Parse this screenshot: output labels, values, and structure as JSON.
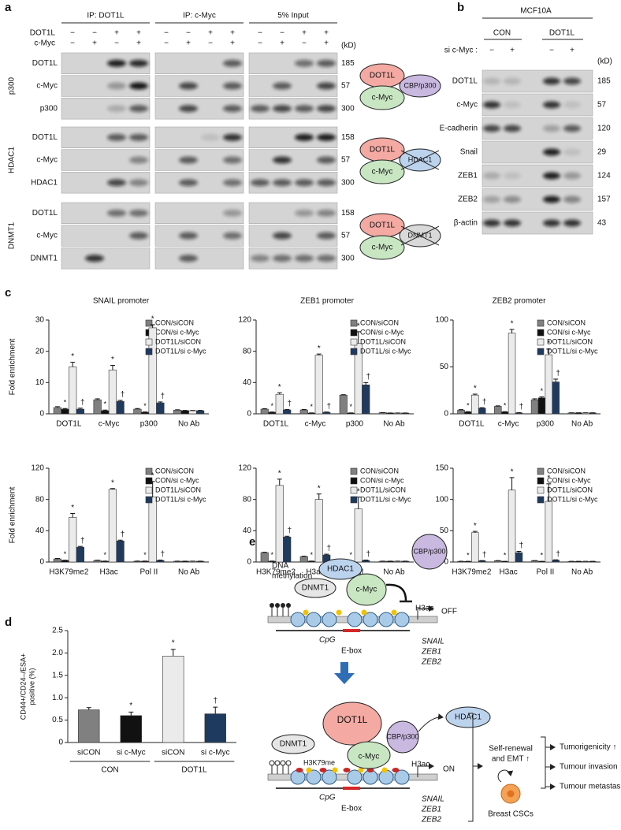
{
  "panel_a": {
    "label": "a",
    "headers": [
      "IP: DOT1L",
      "IP: c-Myc",
      "5% Input"
    ],
    "treatments": [
      {
        "name": "DOT1L",
        "signs": [
          "−",
          "−",
          "+",
          "+"
        ]
      },
      {
        "name": "c-Myc",
        "signs": [
          "−",
          "+",
          "−",
          "+"
        ]
      }
    ],
    "unit": "(kD)",
    "groups": [
      {
        "name": "p300",
        "rows": [
          {
            "name": "DOT1L",
            "kd": 185
          },
          {
            "name": "c-Myc",
            "kd": 57
          },
          {
            "name": "p300",
            "kd": 300
          }
        ]
      },
      {
        "name": "HDAC1",
        "rows": [
          {
            "name": "DOT1L",
            "kd": 158
          },
          {
            "name": "c-Myc",
            "kd": 57
          },
          {
            "name": "HDAC1",
            "kd": 300
          }
        ]
      },
      {
        "name": "DNMT1",
        "rows": [
          {
            "name": "DOT1L",
            "kd": 158
          },
          {
            "name": "c-Myc",
            "kd": 57
          },
          {
            "name": "DNMT1",
            "kd": 300
          }
        ]
      }
    ],
    "diagrams": [
      {
        "top": "DOT1L",
        "bottom": "c-Myc",
        "partner": "CBP/p300"
      },
      {
        "top": "DOT1L",
        "bottom": "c-Myc",
        "partner": "HDAC1"
      },
      {
        "top": "DOT1L",
        "bottom": "c-Myc",
        "partner": "DNMT1"
      }
    ]
  },
  "panel_b": {
    "label": "b",
    "cell_line": "MCF10A",
    "groups": [
      "CON",
      "DOT1L"
    ],
    "treatment": "si c-Myc :",
    "signs": [
      "−",
      "+",
      "−",
      "+"
    ],
    "unit": "(kD)",
    "rows": [
      {
        "name": "DOT1L",
        "kd": 185
      },
      {
        "name": "c-Myc",
        "kd": 57
      },
      {
        "name": "E-cadherin",
        "kd": 120
      },
      {
        "name": "Snail",
        "kd": 29
      },
      {
        "name": "ZEB1",
        "kd": 124
      },
      {
        "name": "ZEB2",
        "kd": 157
      },
      {
        "name": "β-actin",
        "kd": 43
      }
    ]
  },
  "panel_c_label": "c",
  "panel_d_label": "d",
  "chart_data": [
    {
      "type": "bar",
      "title": "SNAIL promoter",
      "y_label": "Fold enrichment",
      "categories": [
        "DOT1L",
        "c-Myc",
        "p300",
        "No Ab"
      ],
      "ylim": [
        0,
        30
      ],
      "yticks": [
        0,
        10,
        20,
        30
      ],
      "series": [
        {
          "name": "CON/siCON",
          "color": "#808080",
          "values": [
            2,
            4.5,
            1.5,
            1.2
          ],
          "errors": [
            0.3,
            0.3,
            0.2,
            0.1
          ],
          "annotations": [
            null,
            null,
            null,
            null
          ]
        },
        {
          "name": "CON/si c-Myc",
          "color": "#111111",
          "values": [
            1.5,
            1,
            0.5,
            1
          ],
          "errors": [
            0.2,
            0.2,
            0.1,
            0.1
          ],
          "annotations": [
            "*",
            "*",
            "*",
            null
          ]
        },
        {
          "name": "DOT1L/siCON",
          "color": "#ebebeb",
          "values": [
            15,
            14,
            27.5,
            1
          ],
          "errors": [
            1.5,
            1.5,
            1,
            0.1
          ],
          "annotations": [
            "*",
            "*",
            "*",
            null
          ]
        },
        {
          "name": "DOT1L/si c-Myc",
          "color": "#1f3a5f",
          "values": [
            1.5,
            4,
            3.5,
            1
          ],
          "errors": [
            0.3,
            0.3,
            0.3,
            0.1
          ],
          "annotations": [
            "†",
            "†",
            "†",
            null
          ]
        }
      ]
    },
    {
      "type": "bar",
      "title": "ZEB1 promoter",
      "categories": [
        "DOT1L",
        "c-Myc",
        "p300",
        "No Ab"
      ],
      "ylim": [
        0,
        120
      ],
      "yticks": [
        0,
        40,
        80,
        120
      ],
      "series": [
        {
          "name": "CON/siCON",
          "color": "#808080",
          "values": [
            6,
            5,
            24,
            1.5
          ],
          "errors": [
            0.5,
            0.5,
            0.5,
            0.1
          ],
          "annotations": [
            null,
            null,
            null,
            null
          ]
        },
        {
          "name": "CON/si c-Myc",
          "color": "#111111",
          "values": [
            2,
            1,
            1,
            1
          ],
          "errors": [
            0.3,
            0.2,
            0.2,
            0.1
          ],
          "annotations": [
            "*",
            "*",
            "*",
            null
          ]
        },
        {
          "name": "DOT1L/siCON",
          "color": "#ebebeb",
          "values": [
            25,
            75,
            90,
            1
          ],
          "errors": [
            2,
            1.5,
            15,
            0.1
          ],
          "annotations": [
            "*",
            "*",
            "*",
            null
          ]
        },
        {
          "name": "DOT1L/si c-Myc",
          "color": "#1f3a5f",
          "values": [
            5,
            2,
            37,
            1
          ],
          "errors": [
            0.5,
            0.3,
            3,
            0.1
          ],
          "annotations": [
            "†",
            "†",
            "†",
            null
          ]
        }
      ]
    },
    {
      "type": "bar",
      "title": "ZEB2 promoter",
      "categories": [
        "DOT1L",
        "c-Myc",
        "p300",
        "No Ab"
      ],
      "ylim": [
        0,
        100
      ],
      "yticks": [
        0,
        50,
        100
      ],
      "series": [
        {
          "name": "CON/siCON",
          "color": "#808080",
          "values": [
            4,
            8,
            15,
            1
          ],
          "errors": [
            0.5,
            0.5,
            1,
            0.1
          ],
          "annotations": [
            null,
            null,
            null,
            null
          ]
        },
        {
          "name": "CON/si c-Myc",
          "color": "#111111",
          "values": [
            2,
            2,
            17,
            1
          ],
          "errors": [
            0.3,
            0.3,
            1,
            0.1
          ],
          "annotations": [
            "*",
            "*",
            "*",
            null
          ]
        },
        {
          "name": "DOT1L/siCON",
          "color": "#ebebeb",
          "values": [
            20,
            86,
            63,
            1
          ],
          "errors": [
            1,
            4,
            6,
            0.1
          ],
          "annotations": [
            "*",
            "*",
            "*",
            null
          ]
        },
        {
          "name": "DOT1L/si c-Myc",
          "color": "#1f3a5f",
          "values": [
            6,
            1,
            34,
            1
          ],
          "errors": [
            0.5,
            0.2,
            3,
            0.1
          ],
          "annotations": [
            "†",
            "†",
            "†",
            null
          ]
        }
      ]
    },
    {
      "type": "bar",
      "y_label": "Fold enrichment",
      "categories": [
        "H3K79me2",
        "H3ac",
        "Pol II",
        "No Ab"
      ],
      "ylim": [
        0,
        120
      ],
      "yticks": [
        0,
        40,
        80,
        120
      ],
      "series": [
        {
          "name": "CON/siCON",
          "color": "#808080",
          "values": [
            4,
            2,
            1,
            1
          ],
          "errors": [
            0.5,
            0.3,
            0.2,
            0.1
          ],
          "annotations": [
            null,
            null,
            null,
            null
          ]
        },
        {
          "name": "CON/si c-Myc",
          "color": "#111111",
          "values": [
            2,
            1,
            1,
            1
          ],
          "errors": [
            0.3,
            0.2,
            0.2,
            0.1
          ],
          "annotations": [
            "*",
            "*",
            "*",
            null
          ]
        },
        {
          "name": "DOT1L/siCON",
          "color": "#ebebeb",
          "values": [
            57,
            93,
            83,
            1
          ],
          "errors": [
            5,
            1,
            20,
            0.1
          ],
          "annotations": [
            "*",
            "*",
            "*",
            null
          ]
        },
        {
          "name": "DOT1L/si c-Myc",
          "color": "#1f3a5f",
          "values": [
            19,
            27,
            2,
            1
          ],
          "errors": [
            1,
            1,
            0.5,
            0.1
          ],
          "annotations": [
            "†",
            "†",
            "†",
            null
          ]
        }
      ]
    },
    {
      "type": "bar",
      "categories": [
        "H3K79me2",
        "H3ac",
        "Pol II",
        "No Ab"
      ],
      "ylim": [
        0,
        120
      ],
      "yticks": [
        0,
        40,
        80,
        120
      ],
      "series": [
        {
          "name": "CON/siCON",
          "color": "#808080",
          "values": [
            12,
            7,
            1,
            1
          ],
          "errors": [
            0.5,
            0.5,
            0.2,
            0.1
          ],
          "annotations": [
            null,
            null,
            null,
            null
          ]
        },
        {
          "name": "CON/si c-Myc",
          "color": "#111111",
          "values": [
            1,
            1,
            1,
            1
          ],
          "errors": [
            0.2,
            0.2,
            0.2,
            0.1
          ],
          "annotations": [
            "*",
            "*",
            "*",
            null
          ]
        },
        {
          "name": "DOT1L/siCON",
          "color": "#ebebeb",
          "values": [
            98,
            80,
            68,
            1
          ],
          "errors": [
            8,
            7,
            15,
            0.1
          ],
          "annotations": [
            "*",
            "*",
            "*",
            null
          ]
        },
        {
          "name": "DOT1L/si c-Myc",
          "color": "#1f3a5f",
          "values": [
            32,
            9,
            2,
            1
          ],
          "errors": [
            1,
            1,
            0.5,
            0.1
          ],
          "annotations": [
            "†",
            "†",
            "†",
            null
          ]
        }
      ]
    },
    {
      "type": "bar",
      "categories": [
        "H3K79me2",
        "H3ac",
        "Pol II",
        "No Ab"
      ],
      "ylim": [
        0,
        150
      ],
      "yticks": [
        0,
        50,
        100,
        150
      ],
      "series": [
        {
          "name": "CON/siCON",
          "color": "#808080",
          "values": [
            1,
            2,
            2,
            1
          ],
          "errors": [
            0.2,
            0.3,
            0.3,
            0.1
          ],
          "annotations": [
            null,
            null,
            null,
            null
          ]
        },
        {
          "name": "CON/si c-Myc",
          "color": "#111111",
          "values": [
            1,
            1,
            1,
            1
          ],
          "errors": [
            0.1,
            0.1,
            0.1,
            0.1
          ],
          "annotations": [
            "*",
            "*",
            "*",
            null
          ]
        },
        {
          "name": "DOT1L/siCON",
          "color": "#ebebeb",
          "values": [
            47,
            115,
            97,
            1
          ],
          "errors": [
            2,
            20,
            28,
            0.1
          ],
          "annotations": [
            "*",
            "*",
            "*",
            null
          ]
        },
        {
          "name": "DOT1L/si c-Myc",
          "color": "#1f3a5f",
          "values": [
            2,
            15,
            3,
            1
          ],
          "errors": [
            0.3,
            2,
            0.5,
            0.1
          ],
          "annotations": [
            "†",
            "†",
            "†",
            null
          ]
        }
      ]
    },
    {
      "type": "bar",
      "y_label": [
        "CD44+/CD24–/ESA+",
        "positive (%)"
      ],
      "categories": [
        "siCON",
        "si c-Myc",
        "siCON",
        "si c-Myc"
      ],
      "category_groups": [
        {
          "name": "CON",
          "categories": [
            0,
            1
          ]
        },
        {
          "name": "DOT1L",
          "categories": [
            2,
            3
          ]
        }
      ],
      "values": [
        0.73,
        0.6,
        1.93,
        0.64
      ],
      "errors": [
        0.05,
        0.08,
        0.15,
        0.15
      ],
      "colors": [
        "#808080",
        "#111111",
        "#ebebeb",
        "#1f3a5f"
      ],
      "annotations": [
        null,
        "*",
        "*",
        "†"
      ],
      "ylim": [
        0,
        2.5
      ],
      "yticks": [
        0,
        0.5,
        {
          "value": 1,
          "label": "1.0"
        },
        1.5,
        {
          "value": 2,
          "label": "2.0"
        },
        2.5
      ]
    }
  ],
  "panel_e": {
    "label": "e",
    "off": {
      "methylation": [
        "DNA",
        "methylation"
      ],
      "dnmt1": "DNMT1",
      "hdac1": "HDAC1",
      "cmyc": "c-Myc",
      "cbp": "CBP/p300",
      "h3ac": "H3ac",
      "state": "OFF",
      "cpg": "CpG",
      "ebox": "E-box",
      "genes": [
        "SNAIL",
        "ZEB1",
        "ZEB2"
      ]
    },
    "on": {
      "dnmt1": "DNMT1",
      "dot1l": "DOT1L",
      "cbp": "CBP/p300",
      "hdac1": "HDAC1",
      "h3k79me": "H3K79me",
      "cmyc": "c-Myc",
      "h3ac": "H3ac",
      "state": "ON",
      "cpg": "CpG",
      "ebox": "E-box",
      "genes": [
        "SNAIL",
        "ZEB1",
        "ZEB2"
      ]
    },
    "outcome": {
      "self_renewal": [
        "Self-renewal",
        "and EMT ↑"
      ],
      "cells": "Breast CSCs",
      "effects": [
        "Tumorigenicity ↑",
        "Tumour invasion ↑",
        "Tumour metastasis ↑"
      ]
    }
  }
}
